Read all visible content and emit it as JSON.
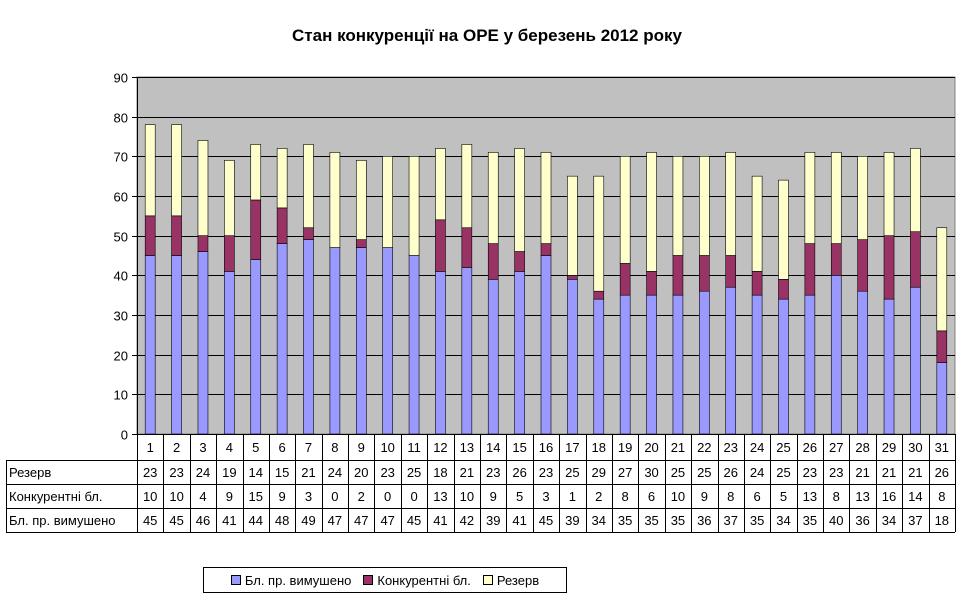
{
  "chart_data": {
    "type": "bar",
    "stacked": true,
    "title": "Стан конкуренції на ОРЕ  у березень 2012 року",
    "xlabel": "",
    "ylabel": "",
    "ylim": [
      0,
      90
    ],
    "yticks": [
      0,
      10,
      20,
      30,
      40,
      50,
      60,
      70,
      80,
      90
    ],
    "grid": true,
    "legend_position": "bottom",
    "categories": [
      "1",
      "2",
      "3",
      "4",
      "5",
      "6",
      "7",
      "8",
      "9",
      "10",
      "11",
      "12",
      "13",
      "14",
      "15",
      "16",
      "17",
      "18",
      "19",
      "20",
      "21",
      "22",
      "23",
      "24",
      "25",
      "26",
      "27",
      "28",
      "29",
      "30",
      "31"
    ],
    "series": [
      {
        "name": "Бл. пр. вимушено",
        "color": "#9999ff",
        "values": [
          45,
          45,
          46,
          41,
          44,
          48,
          49,
          47,
          47,
          47,
          45,
          41,
          42,
          39,
          41,
          45,
          39,
          34,
          35,
          35,
          35,
          36,
          37,
          35,
          34,
          35,
          40,
          36,
          34,
          37,
          18
        ]
      },
      {
        "name": "Конкурентні бл.",
        "color": "#993366",
        "values": [
          10,
          10,
          4,
          9,
          15,
          9,
          3,
          0,
          2,
          0,
          0,
          13,
          10,
          9,
          5,
          3,
          1,
          2,
          8,
          6,
          10,
          9,
          8,
          6,
          5,
          13,
          8,
          13,
          16,
          14,
          8
        ]
      },
      {
        "name": "Резерв",
        "color": "#ffffcc",
        "values": [
          23,
          23,
          24,
          19,
          14,
          15,
          21,
          24,
          20,
          23,
          25,
          18,
          21,
          23,
          26,
          23,
          25,
          29,
          27,
          30,
          25,
          25,
          26,
          24,
          25,
          23,
          23,
          21,
          21,
          21,
          26
        ]
      }
    ],
    "table_rows": [
      "Резерв",
      "Конкурентні бл.",
      "Бл. пр. вимушено"
    ],
    "plot_bg": "#c0c0c0"
  }
}
